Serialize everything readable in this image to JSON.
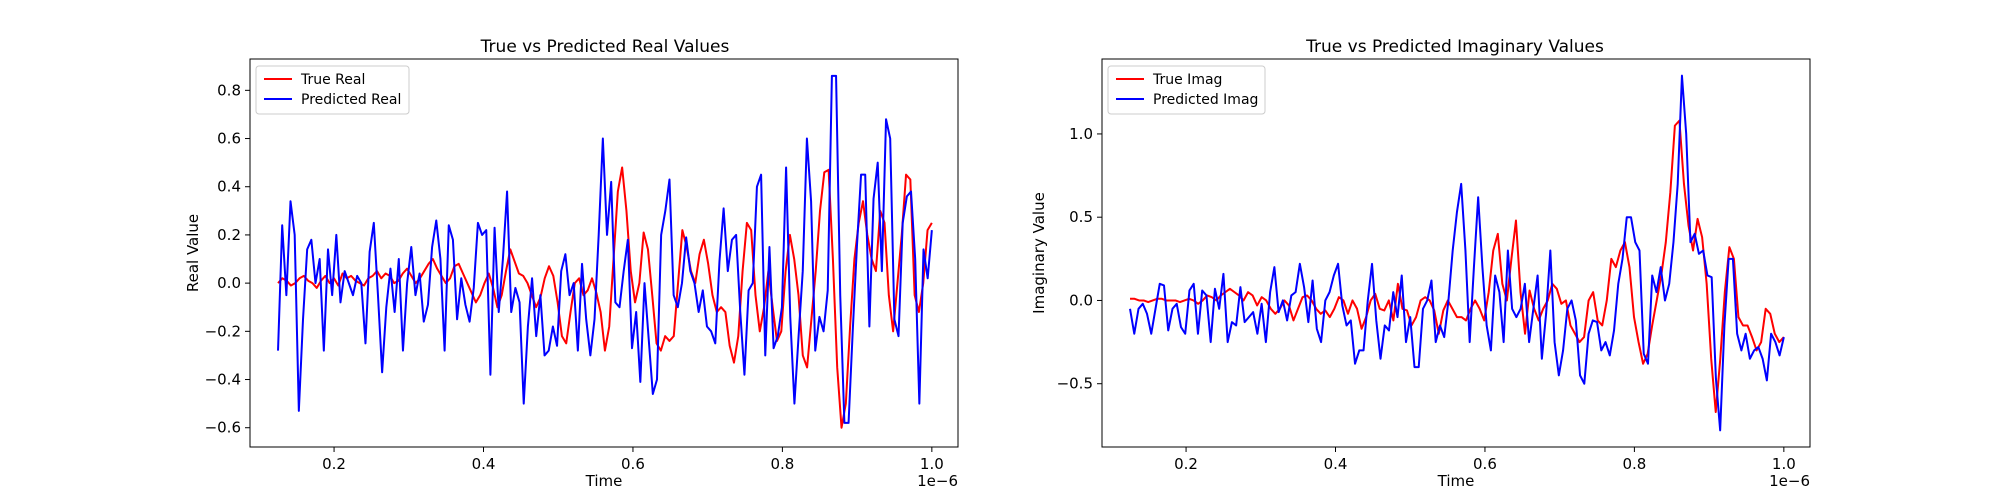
{
  "chart_data": [
    {
      "type": "line",
      "title": "True vs Predicted Real Values",
      "xlabel": "Time",
      "ylabel": "Real Value",
      "x_offset_label": "1e−6",
      "xlim": [
        0.0875,
        1.035
      ],
      "ylim": [
        -0.68,
        0.93
      ],
      "xticks": [
        0.2,
        0.4,
        0.6,
        0.8,
        1.0
      ],
      "xtick_labels": [
        "0.2",
        "0.4",
        "0.6",
        "0.8",
        "1.0"
      ],
      "yticks": [
        -0.6,
        -0.4,
        -0.2,
        0.0,
        0.2,
        0.4,
        0.6,
        0.8
      ],
      "ytick_labels": [
        "−0.6",
        "−0.4",
        "−0.2",
        "0.0",
        "0.2",
        "0.4",
        "0.6",
        "0.8"
      ],
      "legend_position": "upper-left",
      "grid": false,
      "x_start": 0.125,
      "x_end": 1.0,
      "series": [
        {
          "name": "True Real",
          "color": "#ff0000",
          "values": [
            0.0,
            0.02,
            0.01,
            -0.01,
            0.0,
            0.02,
            0.03,
            0.01,
            0.0,
            -0.02,
            0.01,
            0.03,
            0.0,
            0.02,
            -0.01,
            0.04,
            0.02,
            0.03,
            0.01,
            0.0,
            -0.01,
            0.02,
            0.03,
            0.05,
            0.02,
            0.04,
            0.03,
            0.0,
            0.01,
            0.04,
            0.06,
            0.03,
            0.0,
            0.02,
            0.05,
            0.08,
            0.1,
            0.06,
            0.03,
            0.0,
            0.02,
            0.07,
            0.08,
            0.04,
            0.0,
            -0.04,
            -0.08,
            -0.05,
            0.0,
            0.04,
            -0.02,
            -0.1,
            -0.05,
            0.05,
            0.14,
            0.09,
            0.04,
            0.03,
            0.0,
            -0.05,
            -0.1,
            -0.06,
            0.02,
            0.07,
            0.03,
            -0.08,
            -0.22,
            -0.25,
            -0.12,
            0.0,
            0.02,
            -0.05,
            -0.03,
            0.02,
            -0.04,
            -0.12,
            -0.28,
            -0.18,
            0.1,
            0.38,
            0.48,
            0.3,
            0.05,
            -0.08,
            0.0,
            0.21,
            0.14,
            -0.05,
            -0.25,
            -0.28,
            -0.22,
            -0.24,
            -0.22,
            0.0,
            0.22,
            0.15,
            0.05,
            0.0,
            0.12,
            0.18,
            0.08,
            -0.05,
            -0.12,
            -0.1,
            -0.12,
            -0.26,
            -0.33,
            -0.22,
            0.05,
            0.25,
            0.22,
            -0.05,
            -0.2,
            -0.1,
            0.05,
            -0.1,
            -0.24,
            -0.2,
            0.05,
            0.2,
            0.1,
            -0.05,
            -0.3,
            -0.35,
            -0.15,
            0.05,
            0.3,
            0.46,
            0.47,
            0.1,
            -0.35,
            -0.6,
            -0.5,
            -0.18,
            0.1,
            0.25,
            0.34,
            0.2,
            0.1,
            0.05,
            0.3,
            0.25,
            -0.05,
            -0.2,
            0.0,
            0.2,
            0.45,
            0.43,
            -0.05,
            -0.12,
            0.0,
            0.22,
            0.25
          ]
        },
        {
          "name": "Predicted Real",
          "color": "#0000ff",
          "values": [
            -0.28,
            0.24,
            -0.05,
            0.34,
            0.2,
            -0.53,
            -0.15,
            0.14,
            0.18,
            0.0,
            0.1,
            -0.28,
            0.14,
            -0.05,
            0.2,
            -0.08,
            0.05,
            0.0,
            -0.05,
            0.03,
            0.0,
            -0.25,
            0.13,
            0.25,
            -0.05,
            -0.37,
            -0.1,
            0.06,
            -0.12,
            0.1,
            -0.28,
            0.0,
            0.15,
            -0.05,
            0.04,
            -0.16,
            -0.09,
            0.15,
            0.26,
            0.1,
            -0.28,
            0.24,
            0.18,
            -0.15,
            0.02,
            -0.09,
            -0.16,
            -0.02,
            0.25,
            0.2,
            0.22,
            -0.38,
            0.23,
            -0.12,
            0.1,
            0.38,
            -0.12,
            -0.02,
            -0.08,
            -0.5,
            -0.18,
            0.02,
            -0.22,
            -0.05,
            -0.3,
            -0.28,
            -0.18,
            -0.26,
            0.05,
            0.12,
            -0.05,
            0.0,
            -0.28,
            0.08,
            -0.15,
            -0.3,
            -0.15,
            0.2,
            0.6,
            0.2,
            0.42,
            -0.08,
            -0.1,
            0.05,
            0.18,
            -0.27,
            -0.12,
            -0.41,
            0.0,
            -0.23,
            -0.46,
            -0.4,
            0.2,
            0.3,
            0.43,
            -0.05,
            -0.1,
            0.0,
            0.19,
            0.05,
            0.0,
            -0.12,
            -0.03,
            -0.18,
            -0.2,
            -0.25,
            0.09,
            0.31,
            0.05,
            0.18,
            0.2,
            -0.12,
            -0.38,
            -0.03,
            0.0,
            0.4,
            0.45,
            -0.3,
            0.15,
            -0.27,
            -0.22,
            -0.1,
            0.48,
            -0.14,
            -0.5,
            -0.22,
            0.05,
            0.6,
            0.34,
            -0.28,
            -0.14,
            -0.2,
            -0.03,
            0.86,
            0.86,
            -0.05,
            -0.58,
            -0.58,
            -0.2,
            0.15,
            0.45,
            0.45,
            -0.18,
            0.35,
            0.5,
            0.05,
            0.68,
            0.6,
            -0.15,
            -0.22,
            0.25,
            0.36,
            0.38,
            0.1,
            -0.5,
            0.14,
            0.02,
            0.22
          ]
        }
      ]
    },
    {
      "type": "line",
      "title": "True vs Predicted Imaginary Values",
      "xlabel": "Time",
      "ylabel": "Imaginary Value",
      "x_offset_label": "1e−6",
      "xlim": [
        0.0875,
        1.035
      ],
      "ylim": [
        -0.88,
        1.45
      ],
      "xticks": [
        0.2,
        0.4,
        0.6,
        0.8,
        1.0
      ],
      "xtick_labels": [
        "0.2",
        "0.4",
        "0.6",
        "0.8",
        "1.0"
      ],
      "yticks": [
        -0.5,
        0.0,
        0.5,
        1.0
      ],
      "ytick_labels": [
        "−0.5",
        "0.0",
        "0.5",
        "1.0"
      ],
      "legend_position": "upper-left",
      "grid": false,
      "x_start": 0.125,
      "x_end": 1.0,
      "series": [
        {
          "name": "True Imag",
          "color": "#ff0000",
          "values": [
            0.01,
            0.01,
            0.0,
            0.0,
            -0.01,
            0.0,
            0.01,
            0.01,
            0.0,
            0.0,
            0.0,
            -0.01,
            0.0,
            0.01,
            0.0,
            -0.02,
            0.0,
            0.03,
            0.02,
            0.0,
            0.03,
            0.05,
            0.07,
            0.05,
            0.03,
            0.0,
            0.05,
            0.03,
            -0.03,
            0.02,
            0.0,
            -0.05,
            -0.08,
            -0.05,
            0.0,
            -0.03,
            -0.12,
            -0.05,
            0.02,
            0.03,
            0.0,
            -0.05,
            -0.08,
            -0.06,
            -0.1,
            -0.05,
            0.02,
            0.0,
            -0.08,
            0.0,
            -0.05,
            -0.17,
            -0.1,
            0.0,
            0.04,
            -0.05,
            -0.06,
            0.0,
            -0.12,
            0.1,
            -0.05,
            -0.06,
            -0.15,
            -0.1,
            0.0,
            0.02,
            0.0,
            -0.06,
            -0.2,
            -0.06,
            0.0,
            -0.05,
            -0.1,
            -0.1,
            -0.12,
            -0.05,
            0.0,
            -0.05,
            -0.12,
            0.05,
            0.3,
            0.4,
            0.1,
            0.0,
            0.25,
            0.48,
            0.05,
            -0.2,
            0.06,
            -0.05,
            -0.12,
            -0.05,
            0.0,
            0.1,
            0.07,
            -0.02,
            0.0,
            -0.15,
            -0.2,
            -0.25,
            -0.22,
            0.0,
            0.05,
            -0.12,
            -0.15,
            0.0,
            0.25,
            0.2,
            0.3,
            0.35,
            0.2,
            -0.1,
            -0.25,
            -0.38,
            -0.32,
            -0.15,
            0.0,
            0.15,
            0.35,
            0.65,
            1.05,
            1.08,
            0.7,
            0.45,
            0.3,
            0.49,
            0.38,
            0.1,
            -0.35,
            -0.67,
            -0.35,
            0.05,
            0.32,
            0.25,
            -0.1,
            -0.15,
            -0.15,
            -0.22,
            -0.3,
            -0.25,
            -0.05,
            -0.08,
            -0.2,
            -0.25,
            -0.22
          ]
        },
        {
          "name": "Predicted Imag",
          "color": "#0000ff",
          "values": [
            -0.05,
            -0.2,
            -0.05,
            -0.02,
            -0.08,
            -0.2,
            -0.05,
            0.1,
            0.09,
            -0.18,
            -0.05,
            -0.02,
            -0.16,
            -0.2,
            0.06,
            0.1,
            -0.2,
            0.06,
            0.03,
            -0.25,
            0.07,
            -0.05,
            0.16,
            -0.25,
            -0.13,
            -0.15,
            0.08,
            -0.13,
            -0.1,
            -0.07,
            -0.2,
            -0.02,
            -0.25,
            0.05,
            0.2,
            -0.07,
            0.0,
            -0.12,
            0.03,
            0.05,
            0.22,
            0.08,
            -0.13,
            0.12,
            -0.17,
            -0.25,
            0.0,
            0.05,
            0.15,
            0.22,
            -0.03,
            -0.15,
            -0.12,
            -0.38,
            -0.3,
            -0.3,
            0.0,
            0.22,
            -0.12,
            -0.35,
            -0.15,
            -0.18,
            0.05,
            -0.1,
            0.15,
            -0.25,
            -0.1,
            -0.4,
            -0.4,
            -0.05,
            0.0,
            0.12,
            -0.25,
            -0.15,
            -0.22,
            0.0,
            0.3,
            0.53,
            0.7,
            0.3,
            -0.25,
            0.2,
            0.62,
            0.2,
            -0.15,
            -0.3,
            0.15,
            0.05,
            -0.25,
            0.3,
            -0.05,
            -0.1,
            -0.05,
            0.1,
            -0.25,
            -0.05,
            0.15,
            -0.35,
            -0.08,
            0.3,
            -0.25,
            -0.45,
            -0.3,
            -0.05,
            0.0,
            -0.12,
            -0.45,
            -0.5,
            -0.2,
            -0.12,
            -0.13,
            -0.3,
            -0.25,
            -0.33,
            -0.18,
            0.1,
            0.25,
            0.5,
            0.5,
            0.35,
            0.3,
            -0.32,
            -0.38,
            0.15,
            0.05,
            0.2,
            0.0,
            0.1,
            0.35,
            0.7,
            1.35,
            1.0,
            0.35,
            0.4,
            0.28,
            0.3,
            0.15,
            0.14,
            -0.47,
            -0.78,
            -0.15,
            0.25,
            0.25,
            -0.2,
            -0.3,
            -0.2,
            -0.35,
            -0.3,
            -0.28,
            -0.35,
            -0.48,
            -0.2,
            -0.25,
            -0.33,
            -0.22
          ]
        }
      ]
    }
  ]
}
